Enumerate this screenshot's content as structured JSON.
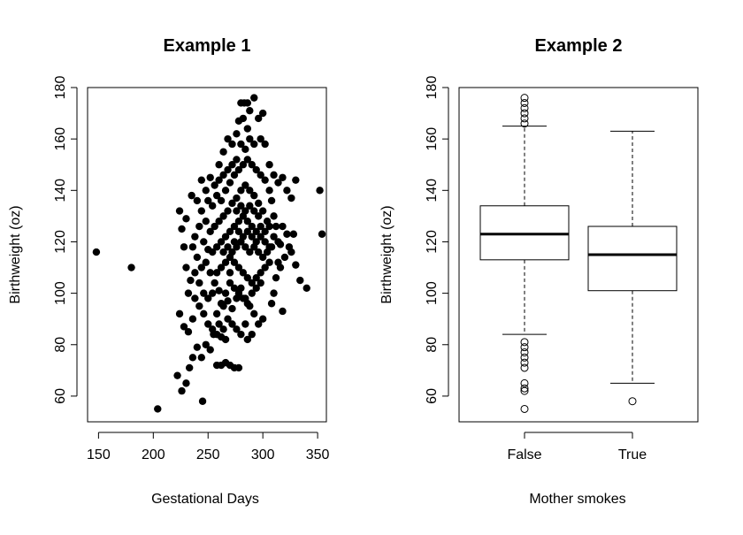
{
  "chart_data": [
    {
      "type": "scatter",
      "title": "Example 1",
      "xlabel": "Gestational Days",
      "ylabel": "Birthweight (oz)",
      "xlim": [
        140,
        358
      ],
      "ylim": [
        50,
        180
      ],
      "xticks": [
        150,
        200,
        250,
        300,
        350
      ],
      "yticks": [
        60,
        80,
        100,
        120,
        140,
        160,
        180
      ],
      "marker": "filled-circle",
      "points": [
        [
          148,
          116
        ],
        [
          180,
          110
        ],
        [
          204,
          55
        ],
        [
          245,
          58
        ],
        [
          222,
          68
        ],
        [
          226,
          62
        ],
        [
          230,
          65
        ],
        [
          233,
          71
        ],
        [
          236,
          75
        ],
        [
          240,
          79
        ],
        [
          244,
          75
        ],
        [
          248,
          80
        ],
        [
          252,
          78
        ],
        [
          255,
          84
        ],
        [
          258,
          72
        ],
        [
          262,
          72
        ],
        [
          266,
          73
        ],
        [
          270,
          72
        ],
        [
          274,
          71
        ],
        [
          278,
          71
        ],
        [
          224,
          92
        ],
        [
          228,
          87
        ],
        [
          232,
          85
        ],
        [
          236,
          90
        ],
        [
          238,
          98
        ],
        [
          242,
          95
        ],
        [
          246,
          92
        ],
        [
          250,
          88
        ],
        [
          254,
          86
        ],
        [
          258,
          84
        ],
        [
          262,
          83
        ],
        [
          266,
          82
        ],
        [
          224,
          132
        ],
        [
          230,
          129
        ],
        [
          235,
          138
        ],
        [
          240,
          136
        ],
        [
          244,
          144
        ],
        [
          248,
          140
        ],
        [
          252,
          145
        ],
        [
          256,
          142
        ],
        [
          260,
          150
        ],
        [
          264,
          155
        ],
        [
          268,
          160
        ],
        [
          272,
          158
        ],
        [
          276,
          162
        ],
        [
          278,
          167
        ],
        [
          280,
          174
        ],
        [
          283,
          174
        ],
        [
          286,
          174
        ],
        [
          288,
          171
        ],
        [
          292,
          176
        ],
        [
          296,
          168
        ],
        [
          300,
          170
        ],
        [
          298,
          160
        ],
        [
          302,
          158
        ],
        [
          306,
          150
        ],
        [
          310,
          146
        ],
        [
          314,
          143
        ],
        [
          318,
          145
        ],
        [
          322,
          140
        ],
        [
          326,
          137
        ],
        [
          330,
          144
        ],
        [
          352,
          140
        ],
        [
          354,
          123
        ],
        [
          340,
          102
        ],
        [
          334,
          105
        ],
        [
          330,
          111
        ],
        [
          326,
          116
        ],
        [
          322,
          123
        ],
        [
          318,
          126
        ],
        [
          316,
          119
        ],
        [
          314,
          112
        ],
        [
          312,
          106
        ],
        [
          310,
          100
        ],
        [
          308,
          96
        ],
        [
          318,
          93
        ],
        [
          300,
          90
        ],
        [
          296,
          88
        ],
        [
          292,
          92
        ],
        [
          288,
          95
        ],
        [
          284,
          98
        ],
        [
          280,
          102
        ],
        [
          276,
          98
        ],
        [
          272,
          94
        ],
        [
          268,
          97
        ],
        [
          264,
          95
        ],
        [
          260,
          101
        ],
        [
          256,
          104
        ],
        [
          252,
          108
        ],
        [
          248,
          112
        ],
        [
          244,
          110
        ],
        [
          240,
          114
        ],
        [
          236,
          118
        ],
        [
          238,
          122
        ],
        [
          242,
          126
        ],
        [
          246,
          120
        ],
        [
          250,
          117
        ],
        [
          254,
          116
        ],
        [
          258,
          118
        ],
        [
          262,
          120
        ],
        [
          266,
          122
        ],
        [
          270,
          124
        ],
        [
          274,
          126
        ],
        [
          278,
          128
        ],
        [
          282,
          130
        ],
        [
          286,
          128
        ],
        [
          290,
          126
        ],
        [
          294,
          124
        ],
        [
          298,
          122
        ],
        [
          302,
          120
        ],
        [
          306,
          118
        ],
        [
          304,
          128
        ],
        [
          300,
          132
        ],
        [
          296,
          135
        ],
        [
          292,
          138
        ],
        [
          288,
          140
        ],
        [
          284,
          142
        ],
        [
          280,
          140
        ],
        [
          276,
          137
        ],
        [
          272,
          135
        ],
        [
          268,
          132
        ],
        [
          264,
          130
        ],
        [
          260,
          128
        ],
        [
          256,
          126
        ],
        [
          252,
          124
        ],
        [
          248,
          128
        ],
        [
          244,
          132
        ],
        [
          250,
          136
        ],
        [
          254,
          134
        ],
        [
          258,
          138
        ],
        [
          262,
          136
        ],
        [
          266,
          140
        ],
        [
          270,
          143
        ],
        [
          274,
          146
        ],
        [
          278,
          148
        ],
        [
          282,
          150
        ],
        [
          286,
          152
        ],
        [
          290,
          150
        ],
        [
          294,
          148
        ],
        [
          298,
          146
        ],
        [
          302,
          144
        ],
        [
          306,
          140
        ],
        [
          308,
          136
        ],
        [
          310,
          130
        ],
        [
          312,
          126
        ],
        [
          306,
          112
        ],
        [
          302,
          110
        ],
        [
          298,
          108
        ],
        [
          294,
          106
        ],
        [
          290,
          104
        ],
        [
          286,
          106
        ],
        [
          282,
          108
        ],
        [
          278,
          110
        ],
        [
          274,
          112
        ],
        [
          270,
          114
        ],
        [
          266,
          112
        ],
        [
          262,
          110
        ],
        [
          258,
          108
        ],
        [
          254,
          100
        ],
        [
          250,
          98
        ],
        [
          246,
          100
        ],
        [
          242,
          104
        ],
        [
          270,
          104
        ],
        [
          274,
          102
        ],
        [
          278,
          100
        ],
        [
          282,
          98
        ],
        [
          286,
          96
        ],
        [
          290,
          100
        ],
        [
          294,
          102
        ],
        [
          298,
          104
        ],
        [
          284,
          118
        ],
        [
          280,
          120
        ],
        [
          276,
          118
        ],
        [
          272,
          116
        ],
        [
          268,
          118
        ],
        [
          264,
          116
        ],
        [
          288,
          116
        ],
        [
          292,
          118
        ],
        [
          296,
          116
        ],
        [
          300,
          114
        ],
        [
          304,
          116
        ],
        [
          308,
          118
        ],
        [
          284,
          132
        ],
        [
          280,
          134
        ],
        [
          276,
          132
        ],
        [
          288,
          134
        ],
        [
          292,
          132
        ],
        [
          296,
          130
        ],
        [
          284,
          156
        ],
        [
          280,
          158
        ],
        [
          288,
          160
        ],
        [
          292,
          158
        ],
        [
          286,
          164
        ],
        [
          282,
          168
        ],
        [
          276,
          152
        ],
        [
          272,
          150
        ],
        [
          268,
          148
        ],
        [
          264,
          146
        ],
        [
          260,
          144
        ],
        [
          284,
          88
        ],
        [
          280,
          84
        ],
        [
          276,
          86
        ],
        [
          272,
          88
        ],
        [
          268,
          90
        ],
        [
          264,
          86
        ],
        [
          260,
          88
        ],
        [
          286,
          82
        ],
        [
          290,
          84
        ],
        [
          234,
          105
        ],
        [
          232,
          100
        ],
        [
          230,
          110
        ],
        [
          228,
          118
        ],
        [
          226,
          125
        ],
        [
          238,
          108
        ],
        [
          258,
          92
        ],
        [
          262,
          96
        ],
        [
          266,
          100
        ],
        [
          270,
          108
        ],
        [
          274,
          120
        ],
        [
          278,
          124
        ],
        [
          282,
          122
        ],
        [
          286,
          124
        ],
        [
          290,
          122
        ],
        [
          294,
          120
        ],
        [
          298,
          126
        ],
        [
          302,
          124
        ],
        [
          306,
          126
        ],
        [
          310,
          122
        ],
        [
          314,
          120
        ],
        [
          316,
          110
        ],
        [
          320,
          114
        ],
        [
          324,
          118
        ],
        [
          328,
          123
        ]
      ]
    },
    {
      "type": "box",
      "title": "Example 2",
      "xlabel": "Mother smokes",
      "ylabel": "Birthweight (oz)",
      "ylim": [
        50,
        180
      ],
      "yticks": [
        60,
        80,
        100,
        120,
        140,
        160,
        180
      ],
      "categories": [
        "False",
        "True"
      ],
      "boxes": [
        {
          "category": "False",
          "whisker_low": 84,
          "q1": 113,
          "median": 123,
          "q3": 134,
          "whisker_high": 165,
          "outliers": [
            176,
            174,
            172,
            170,
            168,
            166,
            81,
            79,
            77,
            75,
            73,
            71,
            65,
            63,
            62,
            55
          ]
        },
        {
          "category": "True",
          "whisker_low": 65,
          "q1": 101,
          "median": 115,
          "q3": 126,
          "whisker_high": 163,
          "outliers": [
            58
          ]
        }
      ]
    }
  ]
}
